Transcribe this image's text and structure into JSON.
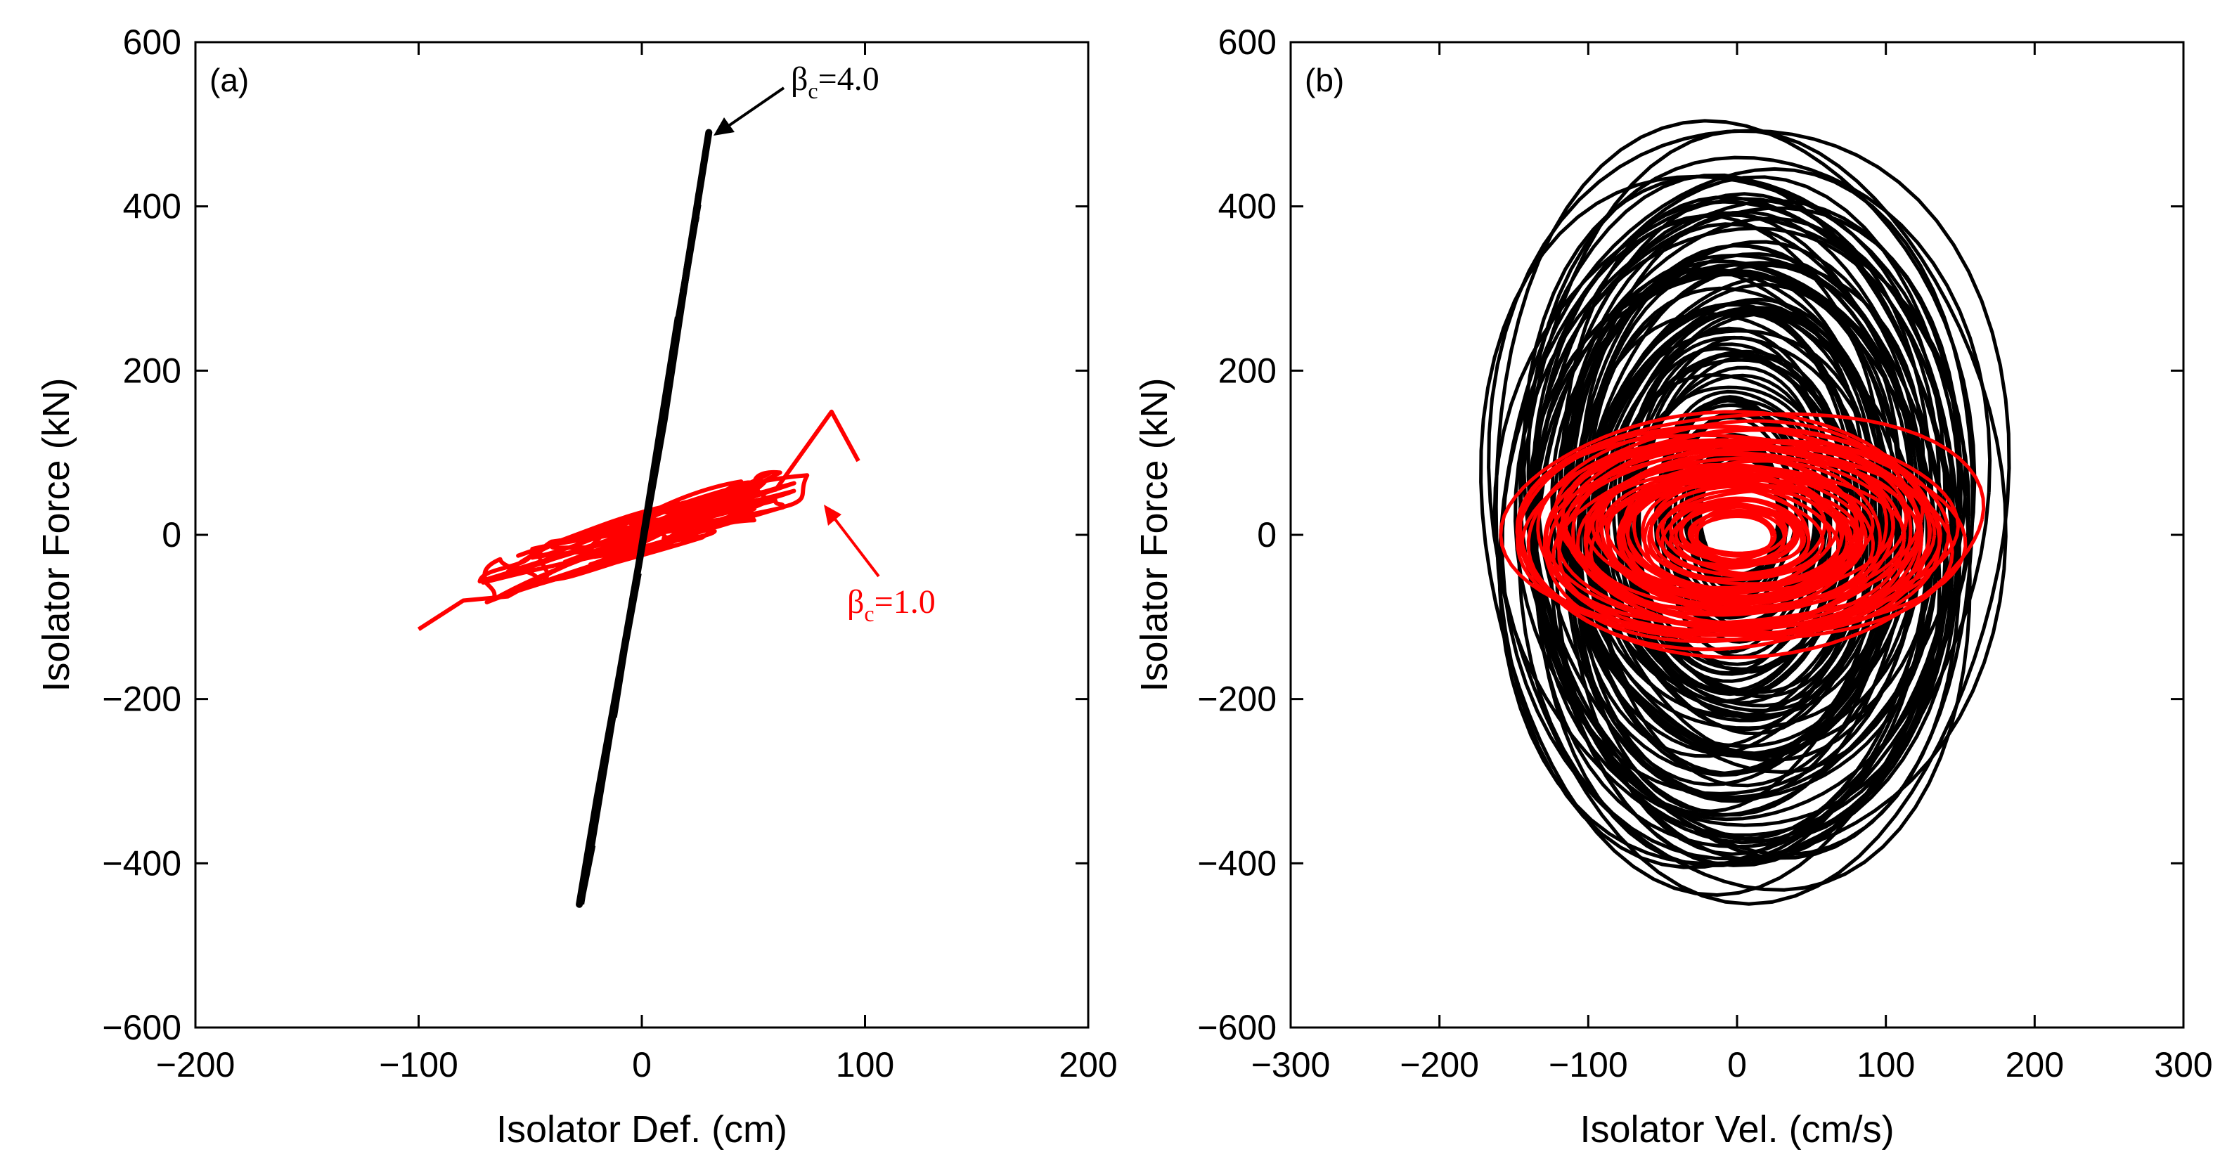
{
  "colors": {
    "black_series": "#000000",
    "red_series": "#ff0000",
    "axes": "#000000"
  },
  "chart_data": [
    {
      "type": "line",
      "panel_label": "(a)",
      "xlabel": "Isolator Def. (cm)",
      "ylabel": "Isolator Force (kN)",
      "xlim": [
        -200,
        200
      ],
      "ylim": [
        -600,
        600
      ],
      "xticks": [
        -200,
        -100,
        0,
        100,
        200
      ],
      "yticks": [
        -600,
        -400,
        -200,
        0,
        200,
        400,
        600
      ],
      "series": [
        {
          "name": "βc=4.0",
          "color": "#000000",
          "x": [
            -28,
            -20,
            -10,
            0,
            10,
            20,
            30
          ],
          "y": [
            -450,
            -320,
            -170,
            -15,
            140,
            320,
            490
          ]
        },
        {
          "name": "βc=1.0",
          "color": "#ff0000",
          "x": [
            -100,
            -80,
            -60,
            -40,
            -20,
            0,
            20,
            40,
            60,
            85,
            97
          ],
          "y": [
            -115,
            -80,
            -75,
            -45,
            -20,
            -5,
            25,
            45,
            55,
            150,
            90
          ]
        }
      ],
      "annotations": [
        {
          "base": "β",
          "sub": "c",
          "rest": "=4.0",
          "color": "#000000",
          "points_to": [
            30,
            490
          ]
        },
        {
          "base": "β",
          "sub": "c",
          "rest": "=1.0",
          "color": "#ff0000",
          "points_to": [
            85,
            30
          ]
        }
      ]
    },
    {
      "type": "line",
      "panel_label": "(b)",
      "xlabel": "Isolator Vel. (cm/s)",
      "ylabel": "Isolator Force (kN)",
      "xlim": [
        -300,
        300
      ],
      "ylim": [
        -600,
        600
      ],
      "xticks": [
        -300,
        -200,
        -100,
        0,
        100,
        200,
        300
      ],
      "yticks": [
        -600,
        -400,
        -200,
        0,
        200,
        400,
        600
      ],
      "series": [
        {
          "name": "βc=4.0",
          "color": "#000000",
          "shape": "orbits",
          "vel_amplitude": 175,
          "force_amplitude": 490,
          "center_force": 20
        },
        {
          "name": "βc=1.0",
          "color": "#ff0000",
          "shape": "orbits",
          "vel_amplitude": 155,
          "force_amplitude": 150,
          "center_force": 0
        }
      ]
    }
  ]
}
